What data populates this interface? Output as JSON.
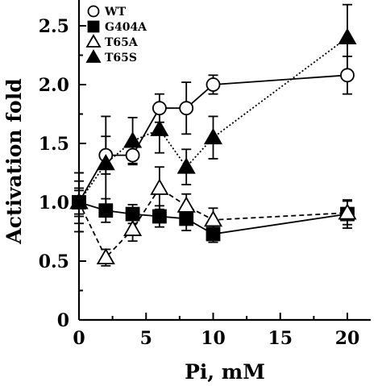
{
  "chart_data": {
    "type": "line",
    "title": "",
    "xlabel": "Pi, mM",
    "ylabel": "Activation fold",
    "xlim": [
      0,
      22
    ],
    "ylim": [
      0,
      2.7
    ],
    "x_ticks": [
      0,
      5,
      10,
      15,
      20
    ],
    "x_tick_labels": [
      "0",
      "5",
      "10",
      "15",
      "20"
    ],
    "y_ticks": [
      0,
      0.5,
      1.0,
      1.5,
      2.0,
      2.5
    ],
    "y_tick_labels": [
      "0",
      "0.5",
      "1.0",
      "1.5",
      "2.0",
      "2.5"
    ],
    "grid": false,
    "legend_position": "top-left",
    "series": [
      {
        "name": "WT",
        "marker": "open-circle",
        "line": "solid",
        "x": [
          0,
          2,
          4,
          6,
          8,
          10,
          20
        ],
        "y": [
          1.0,
          1.4,
          1.4,
          1.8,
          1.8,
          2.0,
          2.08
        ],
        "err": [
          0.18,
          0.16,
          0.07,
          0.12,
          0.22,
          0.08,
          0.16
        ]
      },
      {
        "name": "G404A",
        "marker": "filled-square",
        "line": "solid",
        "x": [
          0,
          2,
          4,
          6,
          8,
          10,
          20
        ],
        "y": [
          1.0,
          0.93,
          0.9,
          0.88,
          0.86,
          0.73,
          0.9
        ],
        "err": [
          0.1,
          0.1,
          0.08,
          0.09,
          0.1,
          0.07,
          0.12
        ]
      },
      {
        "name": "T65A",
        "marker": "open-triangle",
        "line": "dashed",
        "x": [
          0,
          2,
          4,
          6,
          8,
          10,
          20
        ],
        "y": [
          1.0,
          0.53,
          0.77,
          1.12,
          0.97,
          0.85,
          0.91
        ],
        "err": [
          0.12,
          0.07,
          0.1,
          0.18,
          0.1,
          0.1,
          0.1
        ]
      },
      {
        "name": "T65S",
        "marker": "filled-triangle",
        "line": "dotted",
        "x": [
          0,
          2,
          4,
          6,
          8,
          10,
          20
        ],
        "y": [
          1.0,
          1.33,
          1.52,
          1.62,
          1.3,
          1.55,
          2.4
        ],
        "err": [
          0.25,
          0.4,
          0.2,
          0.2,
          0.15,
          0.18,
          0.28
        ]
      }
    ]
  }
}
